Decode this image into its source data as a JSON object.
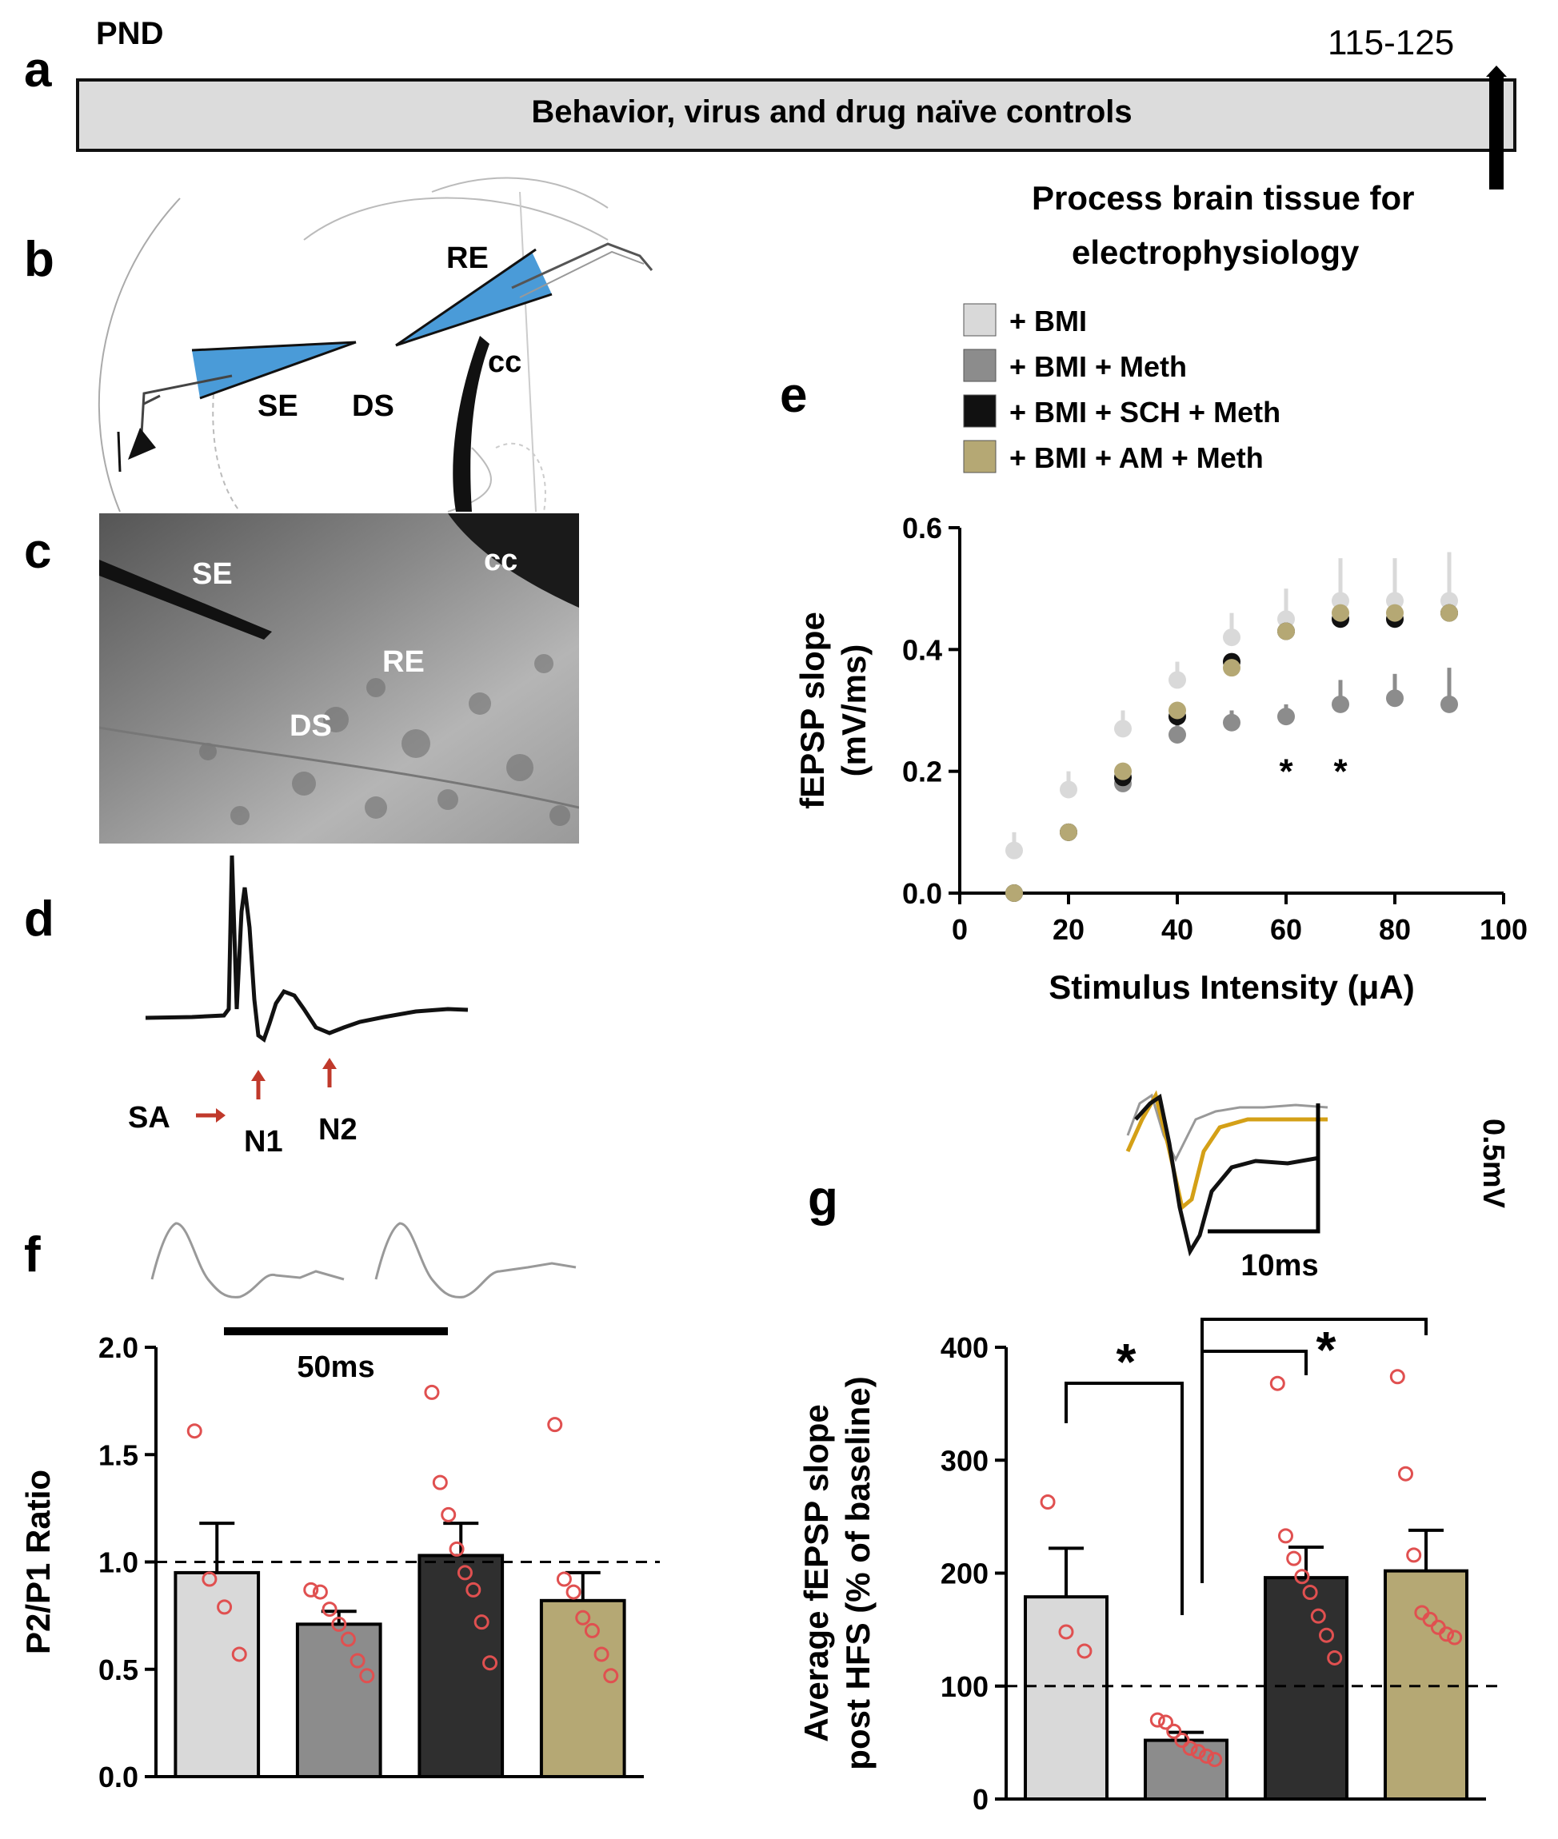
{
  "panels": {
    "a": "a",
    "b": "b",
    "c": "c",
    "d": "d",
    "e": "e",
    "f": "f",
    "g": "g"
  },
  "timeline": {
    "start_label": "PND",
    "end_label": "115-125",
    "bar_text": "Behavior, virus and drug naïve controls",
    "process_line1": "Process brain tissue for",
    "process_line2": "electrophysiology"
  },
  "schematic": {
    "re": "RE",
    "cc": "cc",
    "se": "SE",
    "ds": "DS"
  },
  "photo": {
    "se": "SE",
    "cc": "cc",
    "re": "RE",
    "ds": "DS"
  },
  "trace_labels": {
    "sa": "SA",
    "n1": "N1",
    "n2": "N2"
  },
  "legend": [
    {
      "label": "+ BMI",
      "color": "#d9d9d9"
    },
    {
      "label": "+ BMI + Meth",
      "color": "#8c8c8c"
    },
    {
      "label": "+ BMI + SCH + Meth",
      "color": "#111111"
    },
    {
      "label": "+ BMI + AM + Meth",
      "color": "#b5a874"
    }
  ],
  "scalebars": {
    "f_time": "50ms",
    "g_time": "10ms",
    "g_volt": "0.5mV"
  },
  "chart_data": [
    {
      "id": "e",
      "type": "scatter",
      "xlabel": "Stimulus Intensity (μA)",
      "ylabel_line1": "fEPSP slope",
      "ylabel_line2": "(mV/ms)",
      "xlim": [
        0,
        100
      ],
      "ylim": [
        0,
        0.6
      ],
      "xticks": [
        0,
        20,
        40,
        60,
        80,
        100
      ],
      "yticks": [
        "0.0",
        "0.2",
        "0.4",
        "0.6"
      ],
      "x": [
        10,
        20,
        30,
        40,
        50,
        60,
        70,
        80,
        90
      ],
      "series": [
        {
          "name": "+ BMI",
          "color": "#d9d9d9",
          "values": [
            0.07,
            0.17,
            0.27,
            0.35,
            0.42,
            0.45,
            0.48,
            0.48,
            0.48
          ],
          "err": [
            0.03,
            0.03,
            0.03,
            0.03,
            0.04,
            0.05,
            0.07,
            0.07,
            0.08
          ]
        },
        {
          "name": "+ BMI + Meth",
          "color": "#8c8c8c",
          "values": [
            0.0,
            0.1,
            0.18,
            0.26,
            0.28,
            0.29,
            0.31,
            0.32,
            0.31
          ],
          "err": [
            0.0,
            0.0,
            0.02,
            0.02,
            0.02,
            0.02,
            0.04,
            0.04,
            0.06
          ]
        },
        {
          "name": "+ BMI + SCH + Meth",
          "color": "#111111",
          "values": [
            0.0,
            0.1,
            0.19,
            0.29,
            0.38,
            0.43,
            0.45,
            0.45,
            0.46
          ],
          "err": [
            0.0,
            0.0,
            0.0,
            0.0,
            0.0,
            0.0,
            0.0,
            0.0,
            0.0
          ]
        },
        {
          "name": "+ BMI + AM + Meth",
          "color": "#b5a874",
          "values": [
            0.0,
            0.1,
            0.2,
            0.3,
            0.37,
            0.43,
            0.46,
            0.46,
            0.46
          ],
          "err": [
            0.0,
            0.0,
            0.0,
            0.0,
            0.0,
            0.0,
            0.0,
            0.0,
            0.0
          ]
        }
      ],
      "annotations": [
        {
          "x": 60,
          "y": 0.22,
          "text": "*"
        },
        {
          "x": 70,
          "y": 0.22,
          "text": "*"
        }
      ]
    },
    {
      "id": "f",
      "type": "bar",
      "ylabel": "P2/P1 Ratio",
      "ylim": [
        0,
        2.0
      ],
      "yticks": [
        "0.0",
        "0.5",
        "1.0",
        "1.5",
        "2.0"
      ],
      "reference_line": 1.0,
      "categories": [
        "+ BMI",
        "+ BMI + Meth",
        "+ BMI + SCH + Meth",
        "+ BMI + AM + Meth"
      ],
      "colors": [
        "#d9d9d9",
        "#8c8c8c",
        "#2f2f2f",
        "#b5a874"
      ],
      "values": [
        0.95,
        0.71,
        1.03,
        0.82
      ],
      "err": [
        0.23,
        0.06,
        0.15,
        0.13
      ],
      "points": [
        [
          1.61,
          0.92,
          0.79,
          0.57
        ],
        [
          0.87,
          0.86,
          0.78,
          0.71,
          0.64,
          0.54,
          0.47
        ],
        [
          1.79,
          1.37,
          1.22,
          1.06,
          0.95,
          0.87,
          0.72,
          0.53
        ],
        [
          1.64,
          0.92,
          0.86,
          0.74,
          0.68,
          0.57,
          0.47
        ]
      ]
    },
    {
      "id": "g",
      "type": "bar",
      "ylabel_line1": "Average fEPSP slope",
      "ylabel_line2": "post HFS (% of baseline)",
      "ylim": [
        0,
        400
      ],
      "yticks": [
        "0",
        "100",
        "200",
        "300",
        "400"
      ],
      "reference_line": 100,
      "categories": [
        "+ BMI",
        "+ BMI + Meth",
        "+ BMI + SCH + Meth",
        "+ BMI + AM + Meth"
      ],
      "colors": [
        "#d9d9d9",
        "#8c8c8c",
        "#2f2f2f",
        "#b5a874"
      ],
      "values": [
        179,
        52,
        196,
        202
      ],
      "err": [
        43,
        7,
        27,
        36
      ],
      "points": [
        [
          263,
          148,
          131
        ],
        [
          70,
          68,
          60,
          52,
          45,
          42,
          38,
          35
        ],
        [
          368,
          233,
          213,
          197,
          183,
          162,
          145,
          125
        ],
        [
          374,
          288,
          216,
          165,
          159,
          152,
          146,
          143
        ]
      ],
      "significance": [
        {
          "text": "*"
        },
        {
          "text": "*"
        }
      ]
    }
  ]
}
